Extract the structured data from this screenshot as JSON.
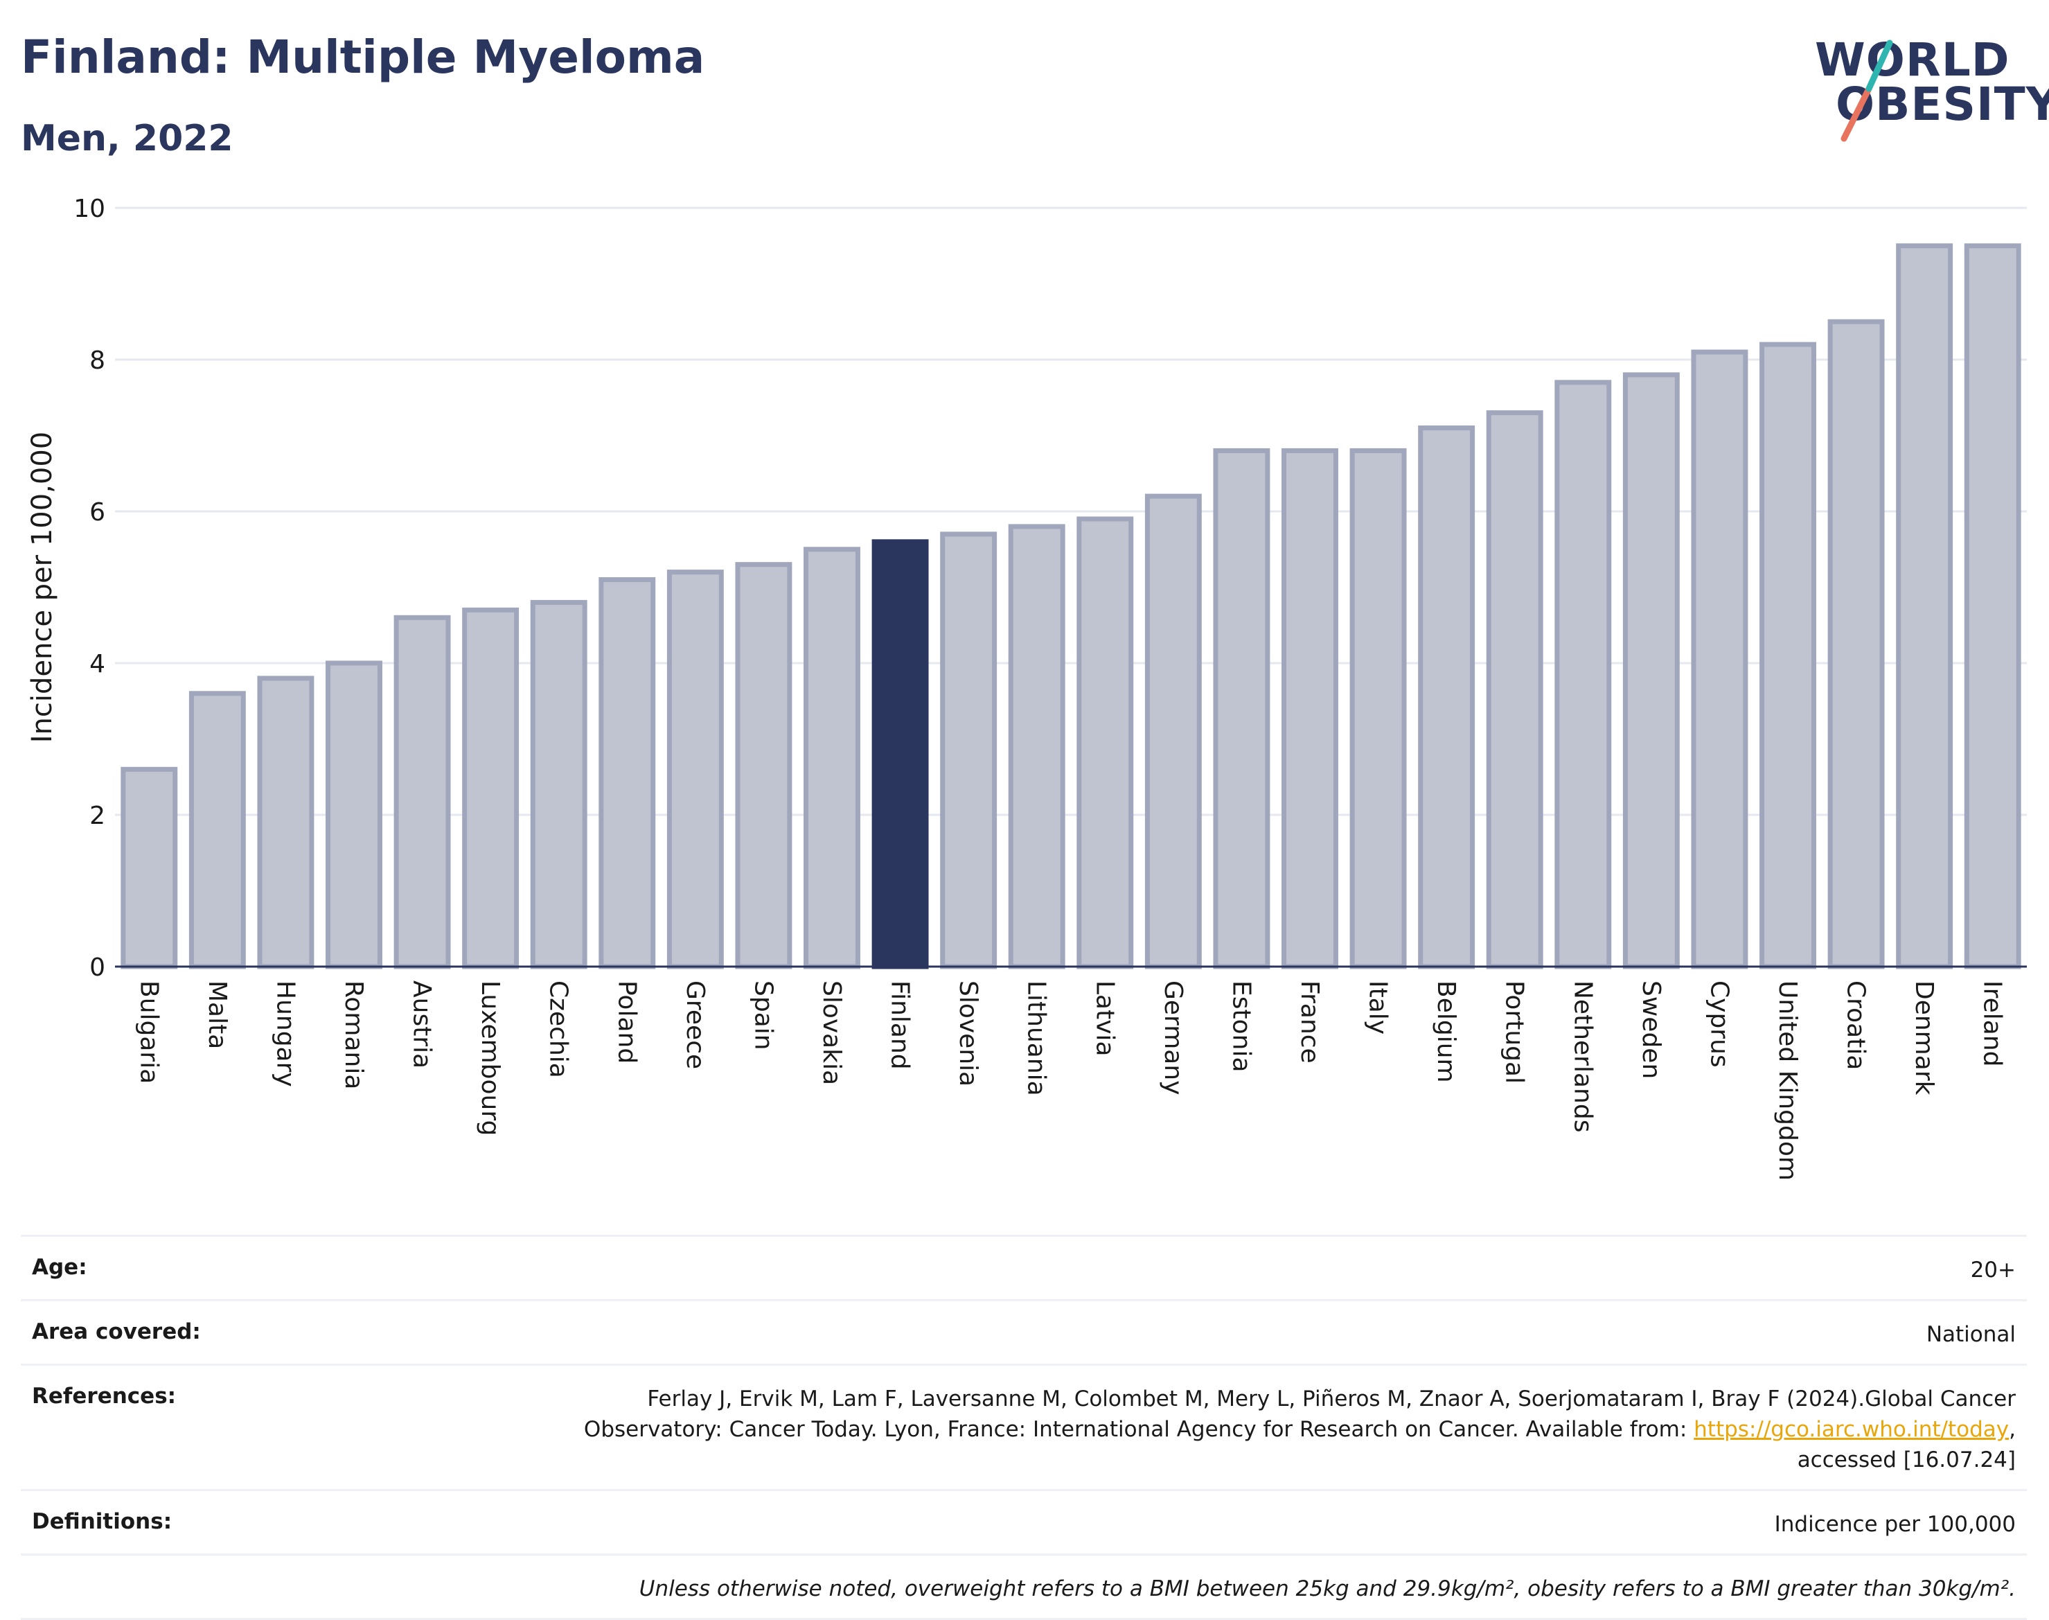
{
  "header": {
    "title": "Finland: Multiple Myeloma",
    "subtitle": "Men, 2022"
  },
  "logo": {
    "line1": "WORLD",
    "line2": "OBESITY"
  },
  "chart_data": {
    "type": "bar",
    "categories": [
      "Bulgaria",
      "Malta",
      "Hungary",
      "Romania",
      "Austria",
      "Luxembourg",
      "Czechia",
      "Poland",
      "Greece",
      "Spain",
      "Slovakia",
      "Finland",
      "Slovenia",
      "Lithuania",
      "Latvia",
      "Germany",
      "Estonia",
      "France",
      "Italy",
      "Belgium",
      "Portugal",
      "Netherlands",
      "Sweden",
      "Cyprus",
      "United Kingdom",
      "Croatia",
      "Denmark",
      "Ireland"
    ],
    "values": [
      2.6,
      3.6,
      3.8,
      4.0,
      4.6,
      4.7,
      4.8,
      5.1,
      5.2,
      5.3,
      5.5,
      5.6,
      5.7,
      5.8,
      5.9,
      6.2,
      6.8,
      6.8,
      6.8,
      7.1,
      7.3,
      7.7,
      7.8,
      8.1,
      8.2,
      8.5,
      9.5,
      9.5
    ],
    "highlight": "Finland",
    "ylabel": "Incidence per 100,000",
    "ylim": [
      0,
      10
    ],
    "yticks": [
      0,
      2,
      4,
      6,
      8,
      10
    ],
    "grid": true,
    "colors": {
      "bar_fill": "#c0c3d0",
      "bar_stroke": "#a0a6bc",
      "highlight": "#2b365f",
      "grid": "#e6e8ef",
      "axis": "#2b365f"
    }
  },
  "info": {
    "age_label": "Age:",
    "age_value": "20+",
    "area_label": "Area covered:",
    "area_value": "National",
    "references_label": "References:",
    "references_line1": "Ferlay J, Ervik M, Lam F, Laversanne M, Colombet M, Mery L, Piñeros M, Znaor A, Soerjomataram I, Bray F (2024).Global Cancer",
    "references_line2_pre": "Observatory: Cancer Today. Lyon, France: International Agency for Research on Cancer. Available from: ",
    "references_link": "https://gco.iarc.who.int/today",
    "references_line2_post": ",",
    "references_line3": "accessed [16.07.24]",
    "definitions_label": "Definitions:",
    "definitions_value": "Indicence per 100,000",
    "note": "Unless otherwise noted, overweight refers to a BMI between 25kg and 29.9kg/m², obesity refers to a BMI greater than 30kg/m²."
  }
}
